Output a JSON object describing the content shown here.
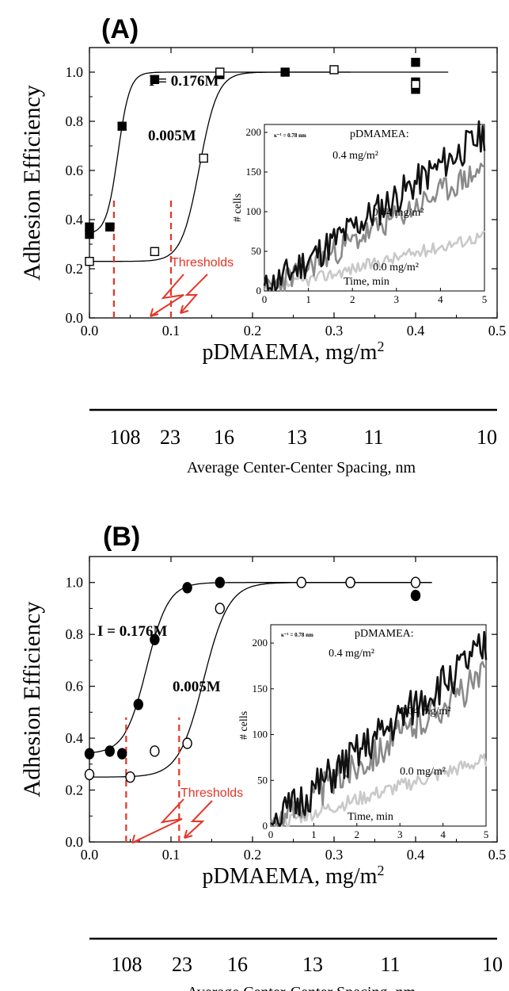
{
  "chart_data": [
    {
      "type": "scatter",
      "panel_label": "(A)",
      "xlabel": "pDMAEMA, mg/m",
      "xlabel_sup": "2",
      "ylabel": "Adhesion Efficiency",
      "xlim": [
        0,
        0.5
      ],
      "ylim": [
        0,
        1.1
      ],
      "xticks": [
        "0.0",
        "0.1",
        "0.2",
        "0.3",
        "0.4",
        "0.5"
      ],
      "yticks": [
        "0.0",
        "0.2",
        "0.4",
        "0.6",
        "0.8",
        "1.0"
      ],
      "marker": "square",
      "series": [
        {
          "name": "I = 0.176M",
          "filled": true,
          "x": [
            0.0,
            0.0,
            0.025,
            0.04,
            0.08,
            0.16,
            0.24,
            0.4,
            0.4,
            0.4
          ],
          "y": [
            0.34,
            0.37,
            0.37,
            0.78,
            0.97,
            0.99,
            1.0,
            1.04,
            0.96,
            0.93
          ]
        },
        {
          "name": "0.005M",
          "filled": false,
          "x": [
            0.0,
            0.08,
            0.14,
            0.16,
            0.3,
            0.4
          ],
          "y": [
            0.23,
            0.27,
            0.65,
            1.0,
            1.01,
            0.95
          ]
        }
      ],
      "fit_curves": [
        {
          "x0": 0.035,
          "k": 140,
          "ymin": 0.34,
          "ymax": 1.0,
          "xmax": 0.44
        },
        {
          "x0": 0.135,
          "k": 90,
          "ymin": 0.23,
          "ymax": 1.0,
          "xmax": 0.32
        }
      ],
      "thresholds": {
        "label": "Thresholds",
        "x": [
          0.03,
          0.1
        ]
      },
      "secondary_axis": {
        "label": "Average Center-Center Spacing, nm",
        "ticks": [
          "108",
          "23",
          "16",
          "13",
          "11",
          "10"
        ]
      },
      "inset": {
        "kappa_label": "κ⁻¹ = 0.78 nm",
        "legend_title": "pDMAMEA:",
        "ylabel": "# cells",
        "xlabel": "Time, min",
        "xlim": [
          0,
          5
        ],
        "ylim": [
          0,
          210
        ],
        "xticks": [
          "0",
          "1",
          "2",
          "3",
          "4",
          "5"
        ],
        "yticks": [
          "0",
          "50",
          "100",
          "150",
          "200"
        ],
        "series": [
          {
            "name": "0.4 mg/m²",
            "color": "#111111",
            "end": 198,
            "seed": 11
          },
          {
            "name": "0.04 mg/m²",
            "color": "#8a8a8a",
            "end": 155,
            "seed": 23
          },
          {
            "name": "0.0 mg/m²",
            "color": "#c9c9c9",
            "end": 70,
            "seed": 37
          }
        ]
      }
    },
    {
      "type": "scatter",
      "panel_label": "(B)",
      "xlabel": "pDMAEMA, mg/m",
      "xlabel_sup": "2",
      "ylabel": "Adhesion Efficiency",
      "xlim": [
        0,
        0.5
      ],
      "ylim": [
        0,
        1.1
      ],
      "xticks": [
        "0.0",
        "0.1",
        "0.2",
        "0.3",
        "0.4",
        "0.5"
      ],
      "yticks": [
        "0.0",
        "0.2",
        "0.4",
        "0.6",
        "0.8",
        "1.0"
      ],
      "marker": "circle",
      "series": [
        {
          "name": "I = 0.176M",
          "filled": true,
          "x": [
            0.0,
            0.025,
            0.04,
            0.06,
            0.08,
            0.12,
            0.16,
            0.32,
            0.4
          ],
          "y": [
            0.34,
            0.35,
            0.34,
            0.53,
            0.78,
            0.98,
            1.0,
            1.0,
            0.95
          ]
        },
        {
          "name": "0.005M",
          "filled": false,
          "x": [
            0.0,
            0.05,
            0.08,
            0.12,
            0.16,
            0.26,
            0.32,
            0.4
          ],
          "y": [
            0.26,
            0.25,
            0.35,
            0.38,
            0.9,
            1.0,
            1.0,
            1.0
          ]
        }
      ],
      "fit_curves": [
        {
          "x0": 0.07,
          "k": 75,
          "ymin": 0.34,
          "ymax": 1.0,
          "xmax": 0.42
        },
        {
          "x0": 0.14,
          "k": 65,
          "ymin": 0.25,
          "ymax": 1.0,
          "xmax": 0.42
        }
      ],
      "thresholds": {
        "label": "Thresholds",
        "x": [
          0.045,
          0.11
        ]
      },
      "secondary_axis": {
        "label": "Average Center-Center Spacing, nm",
        "ticks": [
          "108",
          "23",
          "16",
          "13",
          "11",
          "10"
        ]
      },
      "inset": {
        "kappa_label": "κ⁻¹ = 0.78 nm",
        "legend_title": "pDMAMEA:",
        "ylabel": "# cells",
        "xlabel": "Time, min",
        "xlim": [
          0,
          5
        ],
        "ylim": [
          0,
          220
        ],
        "xticks": [
          "0",
          "1",
          "2",
          "3",
          "4",
          "5"
        ],
        "yticks": [
          "0",
          "50",
          "100",
          "150",
          "200"
        ],
        "series": [
          {
            "name": "0.4 mg/m²",
            "color": "#111111",
            "end": 195,
            "seed": 51
          },
          {
            "name": "0.04 mg/m²",
            "color": "#8a8a8a",
            "end": 165,
            "seed": 63
          },
          {
            "name": "0.0 mg/m²",
            "color": "#c9c9c9",
            "end": 72,
            "seed": 77
          }
        ]
      }
    }
  ]
}
